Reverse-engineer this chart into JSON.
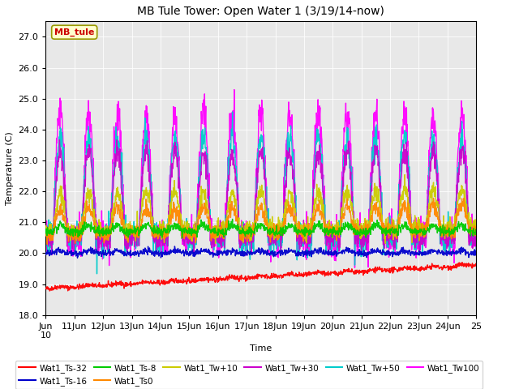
{
  "title": "MB Tule Tower: Open Water 1 (3/19/14-now)",
  "xlabel": "Time",
  "ylabel": "Temperature (C)",
  "ylim": [
    18.0,
    27.5
  ],
  "yticks": [
    18.0,
    19.0,
    20.0,
    21.0,
    22.0,
    23.0,
    24.0,
    25.0,
    26.0,
    27.0
  ],
  "background_color": "#ffffff",
  "plot_bg_color": "#e8e8e8",
  "annotation_box": "MB_tule",
  "annotation_fg": "#cc0000",
  "annotation_bg": "#ffffcc",
  "annotation_edge": "#999900",
  "series": [
    {
      "name": "Wat1_Ts-32",
      "color": "#ff0000",
      "lw": 1.0,
      "base": 18.85,
      "trend": 0.05,
      "amp": 0.05,
      "noise": 0.04
    },
    {
      "name": "Wat1_Ts-16",
      "color": "#0000cc",
      "lw": 1.0,
      "base": 20.0,
      "trend": 0.0,
      "amp": 0.08,
      "noise": 0.05
    },
    {
      "name": "Wat1_Ts-8",
      "color": "#00cc00",
      "lw": 1.0,
      "base": 20.7,
      "trend": 0.0,
      "amp": 0.2,
      "noise": 0.07
    },
    {
      "name": "Wat1_Ts0",
      "color": "#ff8800",
      "lw": 1.0,
      "base": 20.6,
      "trend": 0.01,
      "amp": 0.8,
      "noise": 0.12
    },
    {
      "name": "Wat1_Tw+10",
      "color": "#cccc00",
      "lw": 1.0,
      "base": 20.7,
      "trend": 0.01,
      "amp": 1.2,
      "noise": 0.15
    },
    {
      "name": "Wat1_Tw+30",
      "color": "#cc00cc",
      "lw": 1.0,
      "base": 20.5,
      "trend": 0.0,
      "amp": 2.8,
      "noise": 0.2
    },
    {
      "name": "Wat1_Tw+50",
      "color": "#00cccc",
      "lw": 1.0,
      "base": 20.5,
      "trend": 0.0,
      "amp": 3.2,
      "noise": 0.25
    },
    {
      "name": "Wat1_Tw100",
      "color": "#ff00ff",
      "lw": 1.0,
      "base": 20.5,
      "trend": 0.0,
      "amp": 4.0,
      "noise": 0.3
    }
  ],
  "xtick_labels": [
    "Jun\n10",
    "11Jun",
    "12Jun",
    "13Jun",
    "14Jun",
    "15Jun",
    "16Jun",
    "17Jun",
    "18Jun",
    "19Jun",
    "20Jun",
    "21Jun",
    "22Jun",
    "23Jun",
    "24Jun",
    "25"
  ],
  "legend_entries": [
    {
      "label": "Wat1_Ts-32",
      "color": "#ff0000"
    },
    {
      "label": "Wat1_Ts-16",
      "color": "#0000cc"
    },
    {
      "label": "Wat1_Ts-8",
      "color": "#00cc00"
    },
    {
      "label": "Wat1_Ts0",
      "color": "#ff8800"
    },
    {
      "label": "Wat1_Tw+10",
      "color": "#cccc00"
    },
    {
      "label": "Wat1_Tw+30",
      "color": "#cc00cc"
    },
    {
      "label": "Wat1_Tw+50",
      "color": "#00cccc"
    },
    {
      "label": "Wat1_Tw100",
      "color": "#ff00ff"
    }
  ]
}
